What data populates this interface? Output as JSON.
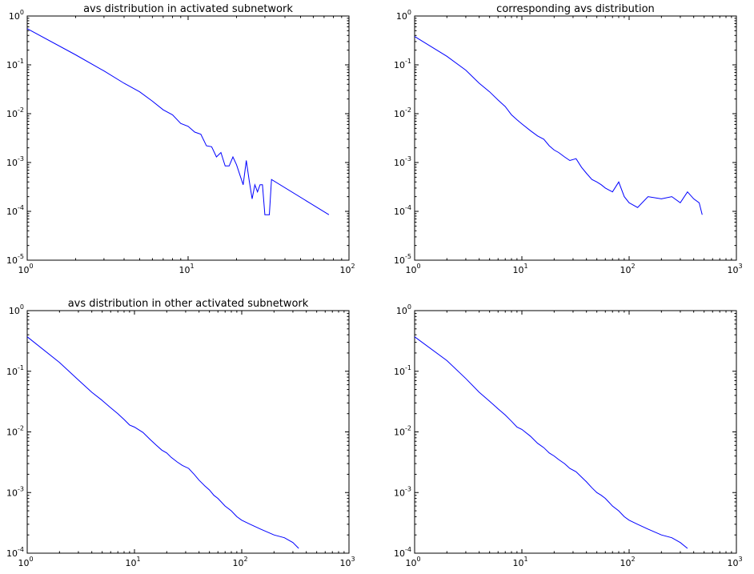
{
  "chart_data": [
    {
      "type": "line",
      "title": "avs distribution in activated subnetwork",
      "xscale": "log",
      "yscale": "log",
      "xlim": [
        1,
        100
      ],
      "ylim": [
        1e-05,
        1
      ],
      "xticks": [
        {
          "base": "10",
          "exp": "0"
        },
        {
          "base": "10",
          "exp": "1"
        },
        {
          "base": "10",
          "exp": "2"
        }
      ],
      "yticks": [
        {
          "base": "10",
          "exp": "-5"
        },
        {
          "base": "10",
          "exp": "-4"
        },
        {
          "base": "10",
          "exp": "-3"
        },
        {
          "base": "10",
          "exp": "-2"
        },
        {
          "base": "10",
          "exp": "-1"
        },
        {
          "base": "10",
          "exp": "0"
        }
      ],
      "color": "#0000ff",
      "series": [
        {
          "x": [
            1,
            2,
            3,
            4,
            5,
            6,
            7,
            8,
            9,
            10,
            11,
            12,
            13,
            14,
            15,
            16,
            17,
            18,
            19,
            20,
            21,
            22,
            23,
            24,
            25,
            26,
            27,
            28,
            29,
            30,
            31,
            32,
            33,
            75
          ],
          "y": [
            0.55,
            0.16,
            0.075,
            0.042,
            0.028,
            0.018,
            0.012,
            0.0095,
            0.0063,
            0.0055,
            0.0042,
            0.0038,
            0.0022,
            0.0021,
            0.0013,
            0.0016,
            0.00085,
            0.00085,
            0.0013,
            0.0009,
            0.00055,
            0.00035,
            0.0011,
            0.00042,
            0.00018,
            0.00035,
            0.00025,
            0.00035,
            0.00035,
            8.55e-05,
            8.55e-05,
            8.55e-05,
            0.00045,
            8.55e-05
          ]
        }
      ]
    },
    {
      "type": "line",
      "title": "corresponding avs distribution",
      "xscale": "log",
      "yscale": "log",
      "xlim": [
        1,
        1000
      ],
      "ylim": [
        1e-05,
        1
      ],
      "xticks": [
        {
          "base": "10",
          "exp": "0"
        },
        {
          "base": "10",
          "exp": "1"
        },
        {
          "base": "10",
          "exp": "2"
        },
        {
          "base": "10",
          "exp": "3"
        }
      ],
      "yticks": [
        {
          "base": "10",
          "exp": "-5"
        },
        {
          "base": "10",
          "exp": "-4"
        },
        {
          "base": "10",
          "exp": "-3"
        },
        {
          "base": "10",
          "exp": "-2"
        },
        {
          "base": "10",
          "exp": "-1"
        },
        {
          "base": "10",
          "exp": "0"
        }
      ],
      "color": "#0000ff",
      "series": [
        {
          "x": [
            1,
            2,
            3,
            4,
            5,
            6,
            7,
            8,
            9,
            10,
            12,
            14,
            16,
            18,
            20,
            22,
            25,
            28,
            32,
            36,
            40,
            45,
            50,
            55,
            60,
            70,
            80,
            90,
            100,
            120,
            150,
            200,
            250,
            300,
            350,
            400,
            450,
            480
          ],
          "y": [
            0.38,
            0.15,
            0.078,
            0.042,
            0.028,
            0.019,
            0.014,
            0.0095,
            0.0075,
            0.0062,
            0.0045,
            0.0035,
            0.003,
            0.0022,
            0.0018,
            0.0016,
            0.0013,
            0.0011,
            0.0012,
            0.0008,
            0.0006,
            0.00045,
            0.0004,
            0.00035,
            0.0003,
            0.00025,
            0.0004,
            0.0002,
            0.00015,
            0.00012,
            0.0002,
            0.00018,
            0.0002,
            0.00015,
            0.00025,
            0.00018,
            0.00015,
            8.55e-05
          ]
        }
      ]
    },
    {
      "type": "line",
      "title": "avs distribution in other activated subnetwork",
      "xscale": "log",
      "yscale": "log",
      "xlim": [
        1,
        1000
      ],
      "ylim": [
        0.0001,
        1
      ],
      "xticks": [
        {
          "base": "10",
          "exp": "0"
        },
        {
          "base": "10",
          "exp": "1"
        },
        {
          "base": "10",
          "exp": "2"
        },
        {
          "base": "10",
          "exp": "3"
        }
      ],
      "yticks": [
        {
          "base": "10",
          "exp": "-4"
        },
        {
          "base": "10",
          "exp": "-3"
        },
        {
          "base": "10",
          "exp": "-2"
        },
        {
          "base": "10",
          "exp": "-1"
        },
        {
          "base": "10",
          "exp": "0"
        }
      ],
      "color": "#0000ff",
      "series": [
        {
          "x": [
            1,
            2,
            3,
            4,
            5,
            6,
            7,
            8,
            9,
            10,
            12,
            14,
            16,
            18,
            20,
            22,
            25,
            28,
            32,
            36,
            40,
            45,
            50,
            55,
            60,
            70,
            80,
            90,
            100,
            120,
            150,
            200,
            250,
            300,
            340
          ],
          "y": [
            0.37,
            0.14,
            0.072,
            0.045,
            0.033,
            0.025,
            0.02,
            0.016,
            0.013,
            0.012,
            0.0098,
            0.0075,
            0.006,
            0.005,
            0.0045,
            0.0038,
            0.0032,
            0.0028,
            0.0025,
            0.002,
            0.0016,
            0.0013,
            0.0011,
            0.0009,
            0.0008,
            0.0006,
            0.0005,
            0.0004,
            0.00035,
            0.0003,
            0.00025,
            0.0002,
            0.00018,
            0.00015,
            0.00012
          ]
        }
      ]
    },
    {
      "type": "line",
      "title": "",
      "xscale": "log",
      "yscale": "log",
      "xlim": [
        1,
        1000
      ],
      "ylim": [
        0.0001,
        1
      ],
      "xticks": [
        {
          "base": "10",
          "exp": "0"
        },
        {
          "base": "10",
          "exp": "1"
        },
        {
          "base": "10",
          "exp": "2"
        },
        {
          "base": "10",
          "exp": "3"
        }
      ],
      "yticks": [
        {
          "base": "10",
          "exp": "-4"
        },
        {
          "base": "10",
          "exp": "-3"
        },
        {
          "base": "10",
          "exp": "-2"
        },
        {
          "base": "10",
          "exp": "-1"
        },
        {
          "base": "10",
          "exp": "0"
        }
      ],
      "color": "#0000ff",
      "series": [
        {
          "x": [
            1,
            2,
            3,
            4,
            5,
            6,
            7,
            8,
            9,
            10,
            12,
            14,
            16,
            18,
            20,
            22,
            25,
            28,
            32,
            36,
            40,
            45,
            50,
            55,
            60,
            70,
            80,
            90,
            100,
            120,
            150,
            200,
            250,
            300,
            350
          ],
          "y": [
            0.37,
            0.15,
            0.076,
            0.045,
            0.032,
            0.024,
            0.019,
            0.015,
            0.012,
            0.011,
            0.0085,
            0.0065,
            0.0055,
            0.0045,
            0.004,
            0.0035,
            0.003,
            0.0025,
            0.0022,
            0.0018,
            0.0015,
            0.0012,
            0.001,
            0.0009,
            0.0008,
            0.0006,
            0.0005,
            0.0004,
            0.00035,
            0.0003,
            0.00025,
            0.0002,
            0.00018,
            0.00015,
            0.00012
          ]
        }
      ]
    }
  ]
}
